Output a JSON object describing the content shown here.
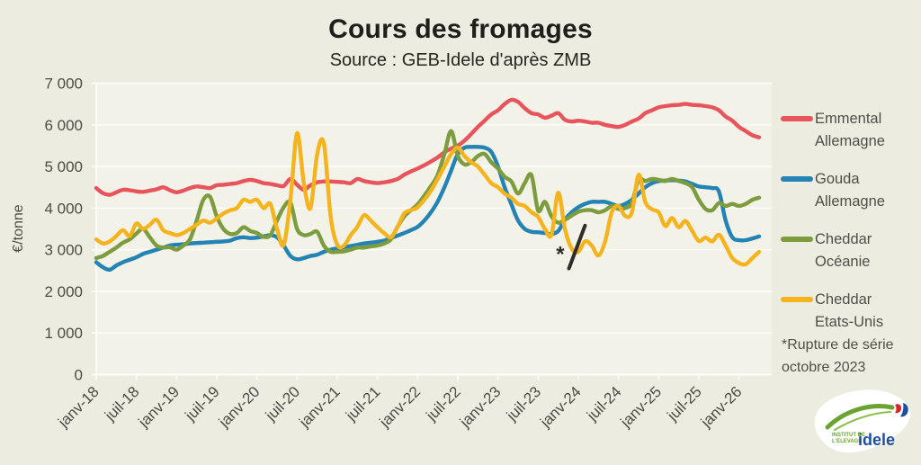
{
  "chart": {
    "title": "Cours des fromages",
    "subtitle": "Source : GEB-Idele d'après ZMB",
    "ylabel": "€/tonne"
  },
  "footnote": {
    "line1": "*Rupture de série",
    "line2": "octobre 2023"
  },
  "logo": {
    "line1": "INSTITUT DE",
    "line2": "L'ELEVAGE",
    "main": "idele"
  },
  "colors": {
    "page_background": "#ecede0",
    "plot_background": "#f2f2e8",
    "gridline": "#ffffff",
    "axis_text": "#4c4c46",
    "annotation": "#2d2d2a",
    "emmental_red": "#e8545c",
    "gouda_blue": "#2383b4",
    "cheddar_oceania_green": "#7d9c3d",
    "cheddar_us_yellow": "#f5b41d"
  },
  "chart_data": {
    "type": "line",
    "title": "Cours des fromages",
    "subtitle": "Source : GEB-Idele d'après ZMB",
    "ylabel": "€/tonne",
    "ylim": [
      0,
      7000
    ],
    "grid": "horizontal-white",
    "legend_position": "right",
    "x_start": "janv-18",
    "x_frequency": "monthly",
    "x_tick_interval_months": 6,
    "x_tick_labels": [
      "janv-18",
      "juil-18",
      "janv-19",
      "juil-19",
      "janv-20",
      "juil-20",
      "janv-21",
      "juil-21",
      "janv-22",
      "juil-22",
      "janv-23",
      "juil-23",
      "janv-24",
      "juil-24",
      "janv-25",
      "juil-25",
      "janv-26"
    ],
    "y_ticks": [
      {
        "value": 0,
        "label": "0"
      },
      {
        "value": 1000,
        "label": "1 000"
      },
      {
        "value": 2000,
        "label": "2 000"
      },
      {
        "value": 3000,
        "label": "3 000"
      },
      {
        "value": 4000,
        "label": "4 000"
      },
      {
        "value": 5000,
        "label": "5 000"
      },
      {
        "value": 6000,
        "label": "6 000"
      },
      {
        "value": 7000,
        "label": "7 000"
      }
    ],
    "series": [
      {
        "name": "Emmental Allemagne",
        "name_lines": [
          "Emmental",
          "Allemagne"
        ],
        "color": "#e8545c",
        "values": [
          4480,
          4360,
          4320,
          4380,
          4440,
          4430,
          4400,
          4390,
          4420,
          4450,
          4500,
          4430,
          4380,
          4420,
          4480,
          4520,
          4500,
          4480,
          4550,
          4560,
          4580,
          4600,
          4650,
          4680,
          4650,
          4600,
          4580,
          4550,
          4530,
          4700,
          4560,
          4440,
          4550,
          4620,
          4640,
          4640,
          4630,
          4620,
          4600,
          4700,
          4650,
          4620,
          4600,
          4620,
          4650,
          4700,
          4800,
          4880,
          4950,
          5030,
          5120,
          5220,
          5340,
          5430,
          5500,
          5620,
          5780,
          5950,
          6100,
          6250,
          6350,
          6500,
          6600,
          6550,
          6400,
          6280,
          6250,
          6170,
          6220,
          6280,
          6120,
          6080,
          6100,
          6080,
          6050,
          6050,
          6000,
          5970,
          5950,
          6000,
          6080,
          6150,
          6280,
          6350,
          6420,
          6450,
          6470,
          6480,
          6500,
          6480,
          6470,
          6450,
          6420,
          6350,
          6200,
          6100,
          5950,
          5850,
          5750,
          5700
        ]
      },
      {
        "name": "Gouda Allemagne",
        "name_lines": [
          "Gouda",
          "Allemagne"
        ],
        "color": "#2383b4",
        "values": [
          2700,
          2580,
          2520,
          2620,
          2700,
          2760,
          2820,
          2900,
          2950,
          3000,
          3050,
          3100,
          3120,
          3130,
          3150,
          3160,
          3170,
          3180,
          3190,
          3200,
          3220,
          3280,
          3300,
          3280,
          3290,
          3320,
          3350,
          3300,
          3100,
          2850,
          2770,
          2800,
          2850,
          2880,
          2950,
          3000,
          3030,
          3060,
          3090,
          3120,
          3150,
          3170,
          3190,
          3220,
          3280,
          3340,
          3400,
          3470,
          3550,
          3700,
          3900,
          4160,
          4500,
          4900,
          5300,
          5450,
          5470,
          5470,
          5450,
          5350,
          5000,
          4500,
          4090,
          3700,
          3500,
          3430,
          3420,
          3400,
          3380,
          3450,
          3720,
          3900,
          4020,
          4100,
          4150,
          4150,
          4150,
          4100,
          4050,
          4100,
          4200,
          4350,
          4500,
          4600,
          4650,
          4660,
          4670,
          4660,
          4640,
          4580,
          4520,
          4500,
          4480,
          4400,
          3700,
          3300,
          3230,
          3230,
          3270,
          3320
        ]
      },
      {
        "name": "Cheddar Océanie",
        "name_lines": [
          "Cheddar",
          "Océanie"
        ],
        "color": "#7d9c3d",
        "values": [
          2800,
          2850,
          2950,
          3050,
          3170,
          3250,
          3390,
          3500,
          3300,
          3100,
          3050,
          3060,
          3000,
          3100,
          3250,
          3700,
          4200,
          4270,
          3800,
          3500,
          3380,
          3400,
          3540,
          3450,
          3400,
          3310,
          3350,
          3700,
          4020,
          4130,
          3500,
          3350,
          3380,
          3430,
          3100,
          2950,
          2950,
          2960,
          3000,
          3050,
          3050,
          3080,
          3100,
          3150,
          3250,
          3550,
          3800,
          3950,
          4090,
          4300,
          4530,
          4800,
          5300,
          5850,
          5250,
          5050,
          5100,
          5250,
          5300,
          5100,
          4950,
          4750,
          4640,
          4350,
          4600,
          4790,
          3940,
          4150,
          3800,
          3650,
          3720,
          3820,
          3910,
          3950,
          3950,
          3900,
          3950,
          4050,
          3980,
          4000,
          4130,
          4680,
          4650,
          4700,
          4680,
          4650,
          4700,
          4650,
          4600,
          4500,
          4200,
          3980,
          3950,
          4120,
          4050,
          4100,
          4050,
          4100,
          4200,
          4250
        ]
      },
      {
        "name": "Cheddar Etats-Unis",
        "name_lines": [
          "Cheddar",
          "Etats-Unis"
        ],
        "color": "#f5b41d",
        "values": [
          3250,
          3150,
          3200,
          3330,
          3470,
          3330,
          3630,
          3500,
          3600,
          3720,
          3470,
          3400,
          3350,
          3400,
          3500,
          3600,
          3700,
          3650,
          3750,
          3870,
          3950,
          4000,
          4200,
          4150,
          4200,
          4000,
          4100,
          3500,
          3120,
          4200,
          5800,
          4600,
          4000,
          5300,
          5550,
          3800,
          3120,
          3100,
          3350,
          3550,
          3830,
          3700,
          3540,
          3400,
          3300,
          3550,
          3870,
          3950,
          4020,
          4200,
          4420,
          4700,
          5000,
          5300,
          5450,
          5250,
          5100,
          5000,
          4800,
          4600,
          4500,
          4350,
          4250,
          4100,
          4050,
          3900,
          3790,
          3500,
          3360,
          4370,
          3500,
          3030,
          2950,
          3200,
          3100,
          2860,
          3200,
          3900,
          4050,
          3810,
          3900,
          4800,
          4150,
          3970,
          3900,
          3570,
          3760,
          3540,
          3690,
          3450,
          3210,
          3290,
          3200,
          3360,
          3100,
          2800,
          2680,
          2650,
          2800,
          2950
        ]
      }
    ],
    "annotation": {
      "label": "*",
      "note": "Rupture de série octobre 2023",
      "star": {
        "month_index": 69.3,
        "value": 2900
      },
      "line": {
        "from": {
          "month_index": 70.6,
          "value": 2550
        },
        "to": {
          "month_index": 73.0,
          "value": 3580
        }
      }
    }
  }
}
